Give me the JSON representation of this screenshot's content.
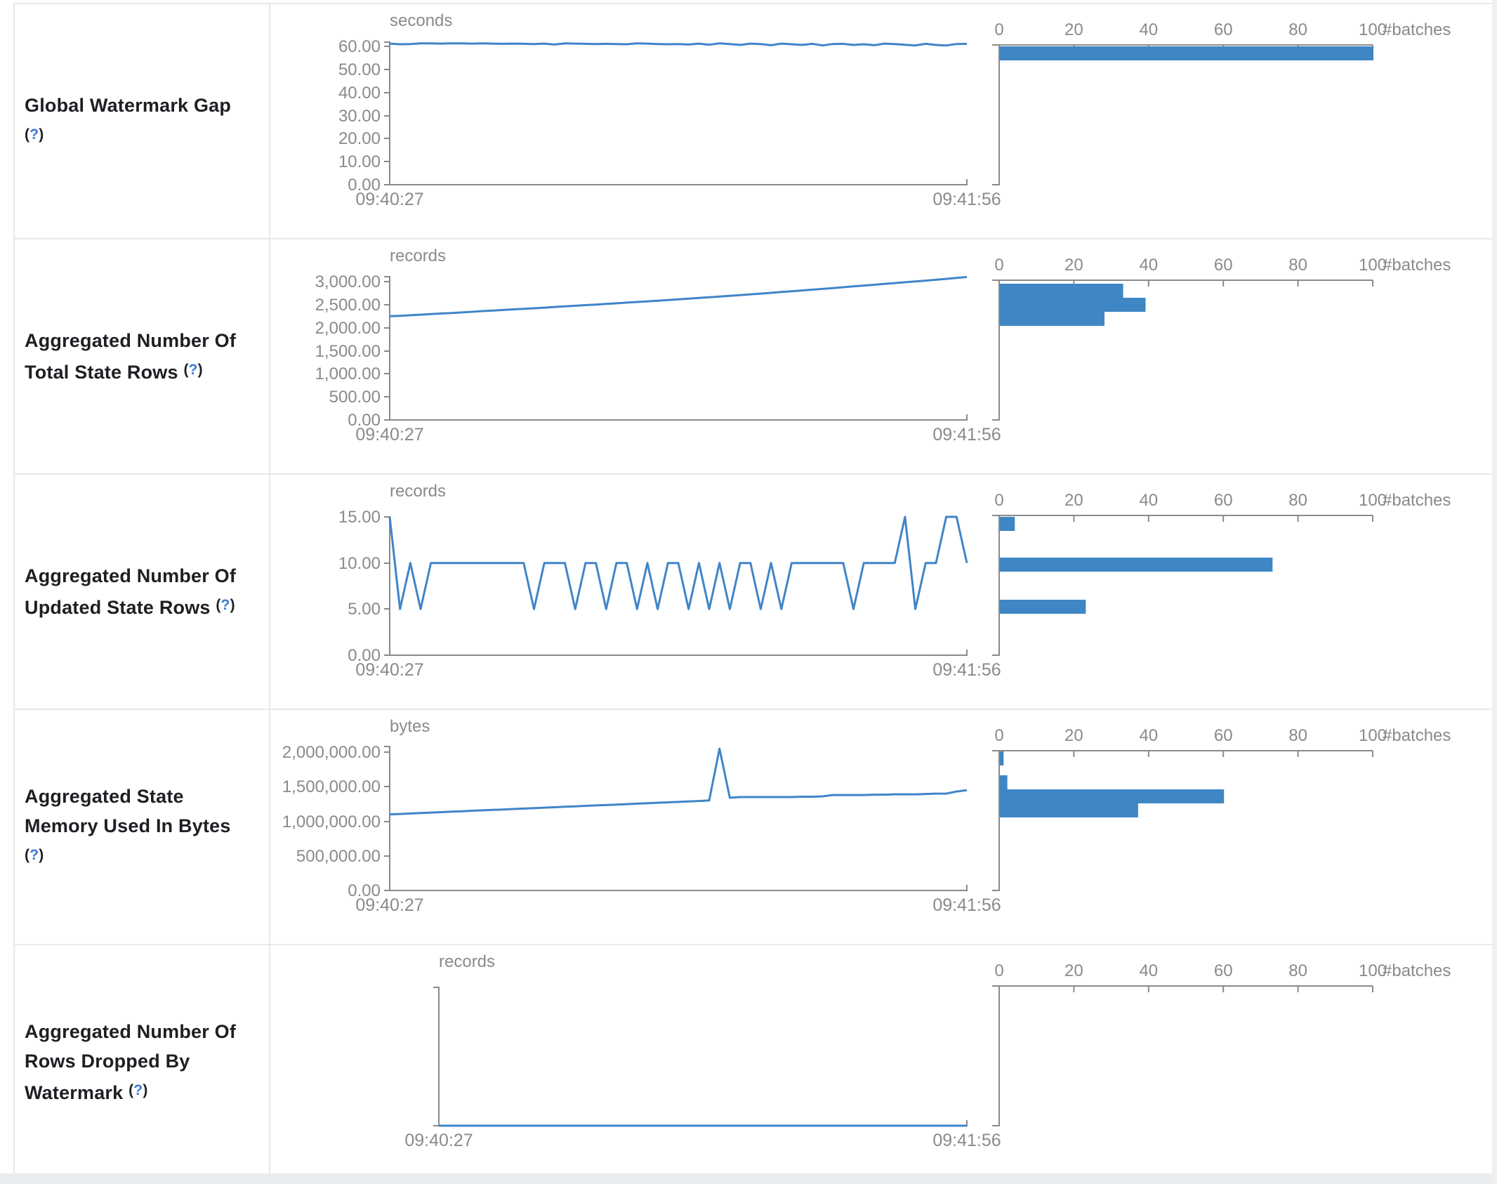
{
  "colors": {
    "line_blue": "#4085C8",
    "bar_blue": "#3E86C4",
    "axis_gray": "#8a8a8a",
    "chart_text_gray": "#8a8a8a",
    "label_dark": "#1d1f23",
    "help_blue": "#3a7bd5",
    "border_gray": "#e6e9ec"
  },
  "chart_data": {
    "type": "line",
    "x_axis": {
      "start_label": "09:40:27",
      "end_label": "09:41:56"
    },
    "histogram_axis": {
      "ticks": [
        0,
        20,
        40,
        60,
        80,
        100
      ],
      "unit_label": "#batches",
      "max": 100
    },
    "rows": [
      {
        "label": "Global Watermark Gap",
        "help": {
          "open": "(",
          "q": "?",
          "close": ")"
        },
        "unit": "seconds",
        "y_ticks": [
          "0.00",
          "10.00",
          "20.00",
          "30.00",
          "40.00",
          "50.00",
          "60.00"
        ],
        "y_tick_values": [
          0,
          10,
          20,
          30,
          40,
          50,
          60
        ],
        "y_tick_max": 60,
        "y_axis_max": 61.8,
        "series": [
          61.2,
          60.9,
          61.0,
          61.3,
          61.3,
          61.2,
          61.3,
          61.3,
          61.2,
          61.3,
          61.2,
          61.1,
          61.2,
          61.1,
          61.0,
          61.2,
          60.8,
          61.3,
          61.2,
          61.1,
          61.0,
          61.1,
          61.0,
          60.9,
          61.3,
          61.2,
          61.0,
          60.9,
          61.0,
          60.8,
          61.2,
          60.7,
          61.3,
          61.0,
          60.6,
          61.2,
          61.0,
          60.5,
          61.2,
          60.9,
          60.6,
          61.1,
          60.4,
          61.0,
          61.1,
          60.6,
          60.9,
          60.5,
          61.2,
          61.0,
          60.7,
          60.4,
          61.1,
          60.6,
          60.4,
          61.0,
          61.1
        ],
        "histogram_bins": [
          {
            "count": 100,
            "top": 60
          }
        ]
      },
      {
        "label": "Aggregated Number Of Total State Rows",
        "help": {
          "open": "(",
          "q": "?",
          "close": ")"
        },
        "unit": "records",
        "y_ticks": [
          "0.00",
          "500.00",
          "1,000.00",
          "1,500.00",
          "2,000.00",
          "2,500.00",
          "3,000.00"
        ],
        "y_tick_values": [
          0,
          500,
          1000,
          1500,
          2000,
          2500,
          3000
        ],
        "y_tick_max": 3000,
        "y_axis_max": 3100,
        "series": [
          2250,
          2259,
          2270,
          2282,
          2295,
          2308,
          2320,
          2331,
          2345,
          2360,
          2372,
          2385,
          2398,
          2410,
          2422,
          2435,
          2450,
          2462,
          2476,
          2490,
          2502,
          2516,
          2530,
          2544,
          2558,
          2572,
          2586,
          2600,
          2615,
          2630,
          2645,
          2660,
          2676,
          2692,
          2708,
          2724,
          2740,
          2757,
          2774,
          2791,
          2808,
          2825,
          2842,
          2860,
          2878,
          2896,
          2914,
          2932,
          2950,
          2968,
          2986,
          3004,
          3022,
          3040,
          3060,
          3080,
          3100
        ],
        "histogram_bins": [
          {
            "count": 33,
            "top": 63
          },
          {
            "count": 39,
            "top": 83
          },
          {
            "count": 28,
            "top": 103
          }
        ]
      },
      {
        "label": "Aggregated Number Of Updated State Rows",
        "help": {
          "open": "(",
          "q": "?",
          "close": ")"
        },
        "unit": "records",
        "y_ticks": [
          "0.00",
          "5.00",
          "10.00",
          "15.00"
        ],
        "y_tick_values": [
          0,
          5,
          10,
          15
        ],
        "y_tick_max": 15,
        "y_axis_max": 15,
        "series": [
          15,
          5,
          10,
          5,
          10,
          10,
          10,
          10,
          10,
          10,
          10,
          10,
          10,
          10,
          5,
          10,
          10,
          10,
          5,
          10,
          10,
          5,
          10,
          10,
          5,
          10,
          5,
          10,
          10,
          5,
          10,
          5,
          10,
          5,
          10,
          10,
          5,
          10,
          5,
          10,
          10,
          10,
          10,
          10,
          10,
          5,
          10,
          10,
          10,
          10,
          15,
          5,
          10,
          10,
          15,
          15,
          10
        ],
        "histogram_bins": [
          {
            "count": 4,
            "top": 60
          },
          {
            "count": 73,
            "top": 118
          },
          {
            "count": 23,
            "top": 178
          }
        ]
      },
      {
        "label": "Aggregated State Memory Used In Bytes",
        "help": {
          "open": "(",
          "q": "?",
          "close": ")"
        },
        "unit": "bytes",
        "y_ticks": [
          "0.00",
          "500,000.00",
          "1,000,000.00",
          "1,500,000.00",
          "2,000,000.00"
        ],
        "y_tick_values": [
          0,
          500000,
          1000000,
          1500000,
          2000000
        ],
        "y_tick_max": 2000000,
        "y_axis_max": 2080000,
        "series": [
          1100000,
          1106000,
          1113000,
          1119000,
          1126000,
          1132000,
          1139000,
          1145000,
          1152000,
          1158000,
          1165000,
          1171000,
          1178000,
          1184000,
          1190000,
          1197000,
          1203000,
          1210000,
          1216000,
          1223000,
          1229000,
          1235000,
          1242000,
          1248000,
          1255000,
          1261000,
          1268000,
          1274000,
          1280000,
          1287000,
          1293000,
          1300000,
          2050000,
          1340000,
          1350000,
          1350000,
          1350000,
          1350000,
          1350000,
          1350000,
          1355000,
          1355000,
          1360000,
          1380000,
          1380000,
          1380000,
          1380000,
          1385000,
          1385000,
          1390000,
          1390000,
          1390000,
          1395000,
          1400000,
          1400000,
          1430000,
          1450000
        ],
        "histogram_bins": [
          {
            "count": 1,
            "top": 59
          },
          {
            "count": 2,
            "top": 93
          },
          {
            "count": 60,
            "top": 113
          },
          {
            "count": 37,
            "top": 133
          }
        ]
      },
      {
        "label": "Aggregated Number Of Rows Dropped By Watermark",
        "help": {
          "open": "(",
          "q": "?",
          "close": ")"
        },
        "unit": "records",
        "y_ticks": [],
        "y_tick_values": [],
        "y_tick_max": 1,
        "y_axis_max": 1,
        "axis_left": 240,
        "series": [
          0,
          0,
          0,
          0,
          0,
          0,
          0,
          0,
          0,
          0,
          0,
          0,
          0,
          0,
          0,
          0,
          0,
          0,
          0,
          0,
          0,
          0,
          0,
          0,
          0,
          0,
          0,
          0,
          0,
          0,
          0,
          0,
          0,
          0,
          0,
          0,
          0,
          0,
          0,
          0,
          0,
          0,
          0,
          0,
          0,
          0,
          0,
          0,
          0,
          0,
          0,
          0,
          0,
          0,
          0,
          0,
          0
        ],
        "histogram_bins": []
      }
    ]
  }
}
